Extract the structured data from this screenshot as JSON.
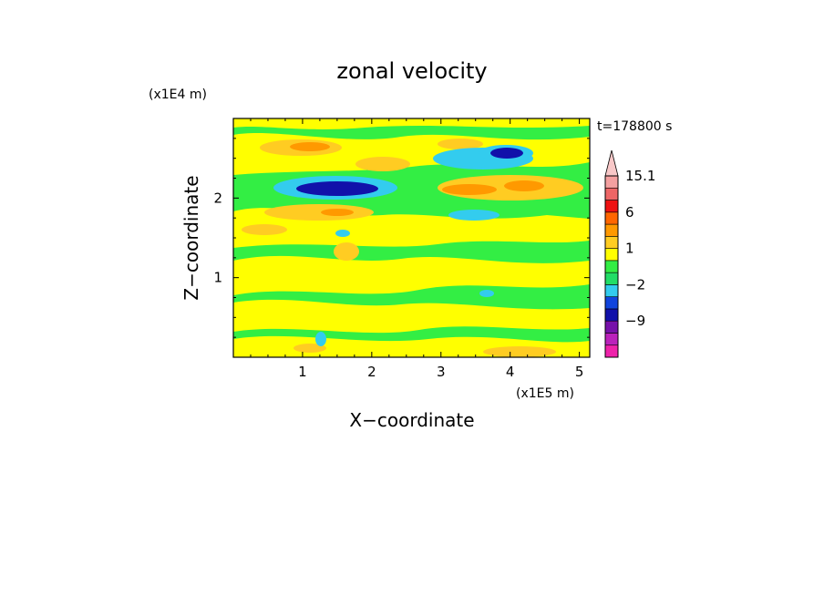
{
  "chart_data": {
    "type": "heatmap",
    "title": "zonal velocity",
    "xlabel": "X−coordinate",
    "ylabel": "Z−coordinate",
    "x_unit_label": "(x1E5 m)",
    "y_unit_label": "(x1E4 m)",
    "time_label": "t=178800 s",
    "xlim": [
      0,
      5.15
    ],
    "ylim": [
      0,
      3.0
    ],
    "x_ticks": [
      "1",
      "2",
      "3",
      "4",
      "5"
    ],
    "y_ticks": [
      "1",
      "2"
    ],
    "colorbar": {
      "levels": [
        -15,
        -12,
        -9,
        -6,
        -3,
        -2,
        -1,
        0,
        1,
        2,
        3,
        6,
        9,
        12,
        15.1
      ],
      "tick_labels": [
        "15.1",
        "6",
        "1",
        "−2",
        "−9"
      ],
      "colors": [
        "#ee22aa",
        "#bb22bb",
        "#7711aa",
        "#1111aa",
        "#1144dd",
        "#33ccee",
        "#22dd66",
        "#33ee44",
        "#ffff00",
        "#ffcc22",
        "#ff9900",
        "#ff6600",
        "#ee1111",
        "#ee6666",
        "#f4a0a0",
        "#f8c8c8"
      ]
    },
    "features": [
      {
        "x": 1.45,
        "z": 2.12,
        "value": -8
      },
      {
        "x": 3.95,
        "z": 2.58,
        "value": -7
      },
      {
        "x": 3.25,
        "z": 1.78,
        "value": -2
      },
      {
        "x": 2.1,
        "z": 2.32,
        "value": 3
      },
      {
        "x": 3.6,
        "z": 2.15,
        "value": 5
      },
      {
        "x": 1.35,
        "z": 1.8,
        "value": 4
      },
      {
        "x": 1.1,
        "z": 2.68,
        "value": 3
      },
      {
        "x": 3.2,
        "z": 2.58,
        "value": 3
      }
    ]
  }
}
